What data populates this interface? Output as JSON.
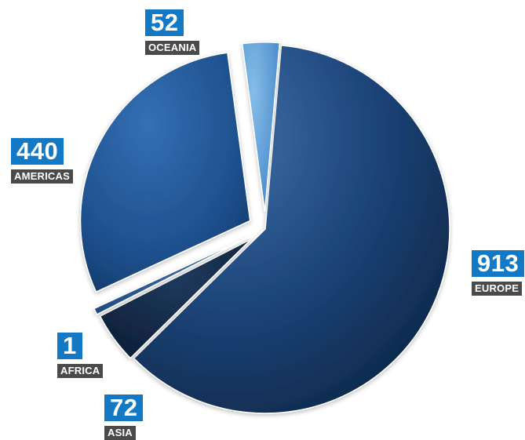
{
  "chart_data": {
    "type": "pie",
    "title": "",
    "slices": [
      {
        "label": "EUROPE",
        "value": 913,
        "color": "#1a3f6e",
        "exploded": false
      },
      {
        "label": "ASIA",
        "value": 72,
        "color": "#0f2540",
        "exploded": true
      },
      {
        "label": "AFRICA",
        "value": 1,
        "color": "#1d4a80",
        "exploded": true
      },
      {
        "label": "AMERICAS",
        "value": 440,
        "color": "#1f5596",
        "exploded": true
      },
      {
        "label": "OCEANIA",
        "value": 52,
        "color": "#5a9bd6",
        "exploded": true
      }
    ],
    "value_color": "#1479c4",
    "label_color": "#4a4a4a"
  }
}
